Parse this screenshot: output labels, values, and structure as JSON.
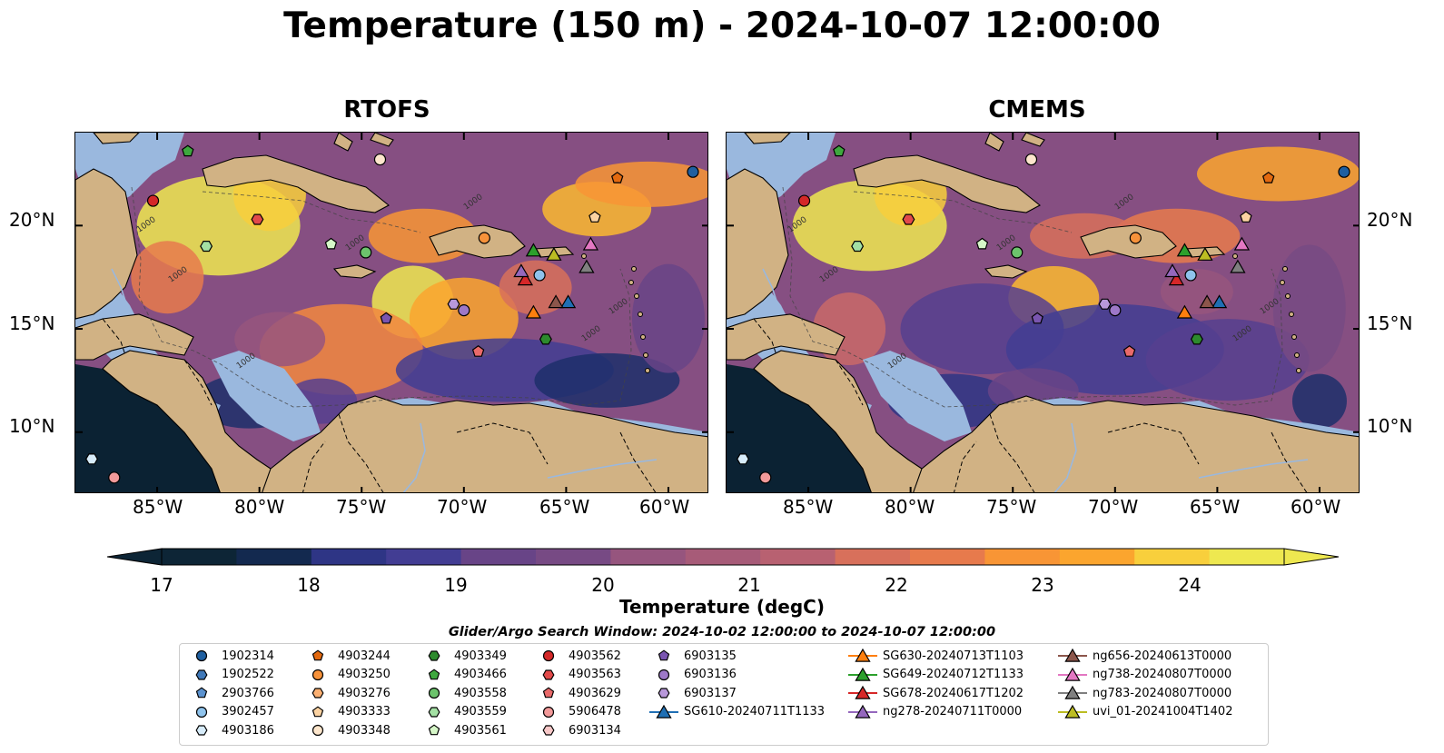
{
  "title": "Temperature (150 m) - 2024-10-07 12:00:00",
  "panels": [
    {
      "title": "RTOFS",
      "lon_ticks": [
        "85°W",
        "80°W",
        "75°W",
        "70°W",
        "65°W",
        "60°W"
      ]
    },
    {
      "title": "CMEMS",
      "lon_ticks": [
        "85°W",
        "80°W",
        "75°W",
        "70°W",
        "65°W",
        "60°W"
      ]
    }
  ],
  "lat_ticks": [
    "20°N",
    "15°N",
    "10°N"
  ],
  "map_extent": {
    "lon": [
      -89,
      -58
    ],
    "lat": [
      7,
      24.5
    ]
  },
  "colorbar": {
    "label": "Temperature (degC)",
    "ticks": [
      "17",
      "18",
      "19",
      "20",
      "21",
      "22",
      "23",
      "24"
    ],
    "range": [
      17,
      24.5
    ],
    "colors": [
      "#0d2536",
      "#13294f",
      "#1d2f6b",
      "#2e3585",
      "#423d93",
      "#563f8f",
      "#684487",
      "#774a84",
      "#864f82",
      "#96557e",
      "#a75b78",
      "#b86171",
      "#c96868",
      "#d8705b",
      "#e77a4c",
      "#f2873f",
      "#f89535",
      "#fba52e",
      "#fcb830",
      "#f8cf3c",
      "#eee850"
    ]
  },
  "search_window": "Glider/Argo Search Window: 2024-10-02 12:00:00 to 2024-10-07 12:00:00",
  "contour_labels": [
    "1000"
  ],
  "platforms": [
    {
      "name": "1902314",
      "marker": "circle",
      "color": "#1f5fa0",
      "lon": -58.8,
      "lat": 22.6
    },
    {
      "name": "1902522",
      "marker": "hexagon",
      "color": "#3f78b8",
      "lon": null,
      "lat": null
    },
    {
      "name": "2903766",
      "marker": "pentagon",
      "color": "#5b92cf",
      "lon": null,
      "lat": null
    },
    {
      "name": "3902457",
      "marker": "circle",
      "color": "#8fc3ec",
      "lon": -66.3,
      "lat": 17.6
    },
    {
      "name": "4903186",
      "marker": "hexagon",
      "color": "#d7ecfa",
      "lon": -88.2,
      "lat": 8.7
    },
    {
      "name": "4903244",
      "marker": "pentagon",
      "color": "#e3690f",
      "lon": -62.5,
      "lat": 22.3
    },
    {
      "name": "4903250",
      "marker": "circle",
      "color": "#f7923a",
      "lon": -69.0,
      "lat": 19.4
    },
    {
      "name": "4903276",
      "marker": "hexagon",
      "color": "#fbb072",
      "lon": null,
      "lat": null
    },
    {
      "name": "4903333",
      "marker": "pentagon",
      "color": "#fcd3a2",
      "lon": -63.6,
      "lat": 20.4
    },
    {
      "name": "4903348",
      "marker": "circle",
      "color": "#fde6cc",
      "lon": -74.1,
      "lat": 23.2
    },
    {
      "name": "4903349",
      "marker": "hexagon",
      "color": "#2d8a2d",
      "lon": -66.0,
      "lat": 14.5
    },
    {
      "name": "4903466",
      "marker": "pentagon",
      "color": "#3ea83e",
      "lon": -83.5,
      "lat": 23.6
    },
    {
      "name": "4903558",
      "marker": "circle",
      "color": "#6cc36c",
      "lon": -74.8,
      "lat": 18.7
    },
    {
      "name": "4903559",
      "marker": "hexagon",
      "color": "#a3e0a3",
      "lon": -82.6,
      "lat": 19.0
    },
    {
      "name": "4903561",
      "marker": "pentagon",
      "color": "#d6f7c8",
      "lon": -76.5,
      "lat": 19.1
    },
    {
      "name": "4903562",
      "marker": "circle",
      "color": "#d42828",
      "lon": -85.2,
      "lat": 21.2
    },
    {
      "name": "4903563",
      "marker": "hexagon",
      "color": "#e24a4a",
      "lon": -80.1,
      "lat": 20.3
    },
    {
      "name": "4903629",
      "marker": "pentagon",
      "color": "#ea6a6a",
      "lon": -69.3,
      "lat": 13.9
    },
    {
      "name": "5906478",
      "marker": "circle",
      "color": "#f39a9a",
      "lon": -87.1,
      "lat": 7.8
    },
    {
      "name": "6903134",
      "marker": "hexagon",
      "color": "#f8c8c8",
      "lon": null,
      "lat": null
    },
    {
      "name": "6903135",
      "marker": "pentagon",
      "color": "#7a55b0",
      "lon": -73.8,
      "lat": 15.5
    },
    {
      "name": "6903136",
      "marker": "circle",
      "color": "#9d78c8",
      "lon": -70.0,
      "lat": 15.9
    },
    {
      "name": "6903137",
      "marker": "hexagon",
      "color": "#b898da",
      "lon": -70.5,
      "lat": 16.2
    },
    {
      "name": "SG610-20240711T1133",
      "marker": "triangle",
      "color": "#1f6fb4",
      "lon": -64.9,
      "lat": 16.3
    },
    {
      "name": "SG630-20240713T1103",
      "marker": "triangle",
      "color": "#ff7f0e",
      "lon": -66.6,
      "lat": 15.8
    },
    {
      "name": "SG649-20240712T1133",
      "marker": "triangle",
      "color": "#2ca02c",
      "lon": -66.6,
      "lat": 18.8
    },
    {
      "name": "SG678-20240617T1202",
      "marker": "triangle",
      "color": "#d62728",
      "lon": -67.0,
      "lat": 17.4
    },
    {
      "name": "ng278-20240711T0000",
      "marker": "triangle",
      "color": "#9467bd",
      "lon": -67.2,
      "lat": 17.8
    },
    {
      "name": "ng656-20240613T0000",
      "marker": "triangle",
      "color": "#8c564b",
      "lon": -65.5,
      "lat": 16.3
    },
    {
      "name": "ng738-20240807T0000",
      "marker": "triangle",
      "color": "#e377c2",
      "lon": -63.8,
      "lat": 19.1
    },
    {
      "name": "ng783-20240807T0000",
      "marker": "triangle",
      "color": "#7f7f7f",
      "lon": -64.0,
      "lat": 18.0
    },
    {
      "name": "uvi_01-20241004T1402",
      "marker": "triangle",
      "color": "#bcbd22",
      "lon": -65.6,
      "lat": 18.6
    }
  ]
}
